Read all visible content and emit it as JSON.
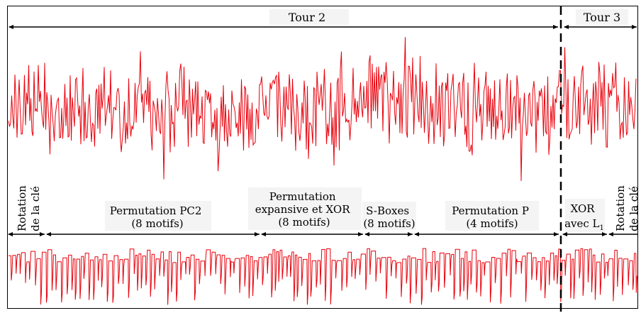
{
  "rounds": [
    {
      "label": "Tour 2"
    },
    {
      "label": "Tour 3"
    }
  ],
  "phases": [
    {
      "lines": [
        "Rotation",
        "de la clé"
      ],
      "orientation": "vertical"
    },
    {
      "lines": [
        "Permutation PC2",
        "(8 motifs)"
      ],
      "orientation": "horizontal"
    },
    {
      "lines": [
        "Permutation",
        "expansive et XOR",
        "(8 motifs)"
      ],
      "orientation": "horizontal"
    },
    {
      "lines": [
        "S-Boxes",
        "(8 motifs)"
      ],
      "orientation": "horizontal"
    },
    {
      "lines": [
        "Permutation P",
        "(4 motifs)"
      ],
      "orientation": "horizontal"
    },
    {
      "lines": [
        "XOR",
        "avec L1"
      ],
      "orientation": "horizontal",
      "subscript": "1"
    },
    {
      "lines": [
        "Rotation",
        "de la clé"
      ],
      "orientation": "vertical"
    }
  ],
  "colors": {
    "trace": "#e8000b",
    "arrow": "#000000",
    "divider": "#000000",
    "label_bg": "#f4f4f4"
  }
}
